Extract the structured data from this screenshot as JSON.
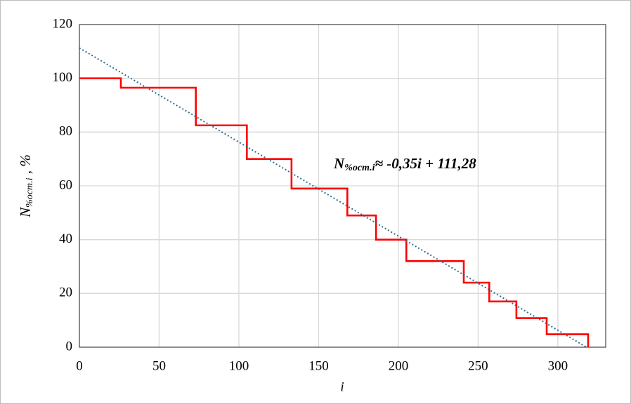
{
  "chart_data": {
    "type": "line",
    "x_label": "i",
    "y_label": {
      "main": "N",
      "sub": "%ост.i",
      "rest": " ,  %"
    },
    "annotation": {
      "main": "N",
      "sub": "%ост.i",
      "rest": "≈ -0,35i + 111,28"
    },
    "xlim": [
      0,
      330
    ],
    "ylim": [
      0,
      120
    ],
    "xticks": [
      0,
      50,
      100,
      150,
      200,
      250,
      300
    ],
    "yticks": [
      0,
      20,
      40,
      60,
      80,
      100,
      120
    ],
    "grid": true,
    "series": [
      {
        "name": "data",
        "color": "#ff0000",
        "style": "solid",
        "x": [
          0,
          26,
          26,
          73,
          73,
          105,
          105,
          133,
          133,
          168,
          168,
          186,
          186,
          205,
          205,
          241,
          241,
          257,
          257,
          274,
          274,
          293,
          293,
          319,
          319
        ],
        "values": [
          100,
          100,
          96.5,
          96.5,
          82.5,
          82.5,
          70,
          70,
          59,
          59,
          49,
          49,
          40,
          40,
          32,
          32,
          24,
          24,
          17,
          17,
          10.8,
          10.8,
          4.8,
          4.8,
          0
        ]
      },
      {
        "name": "trend",
        "color": "#2e6f8e",
        "style": "dotted",
        "x": [
          0,
          318
        ],
        "values": [
          111.28,
          0
        ]
      }
    ]
  }
}
